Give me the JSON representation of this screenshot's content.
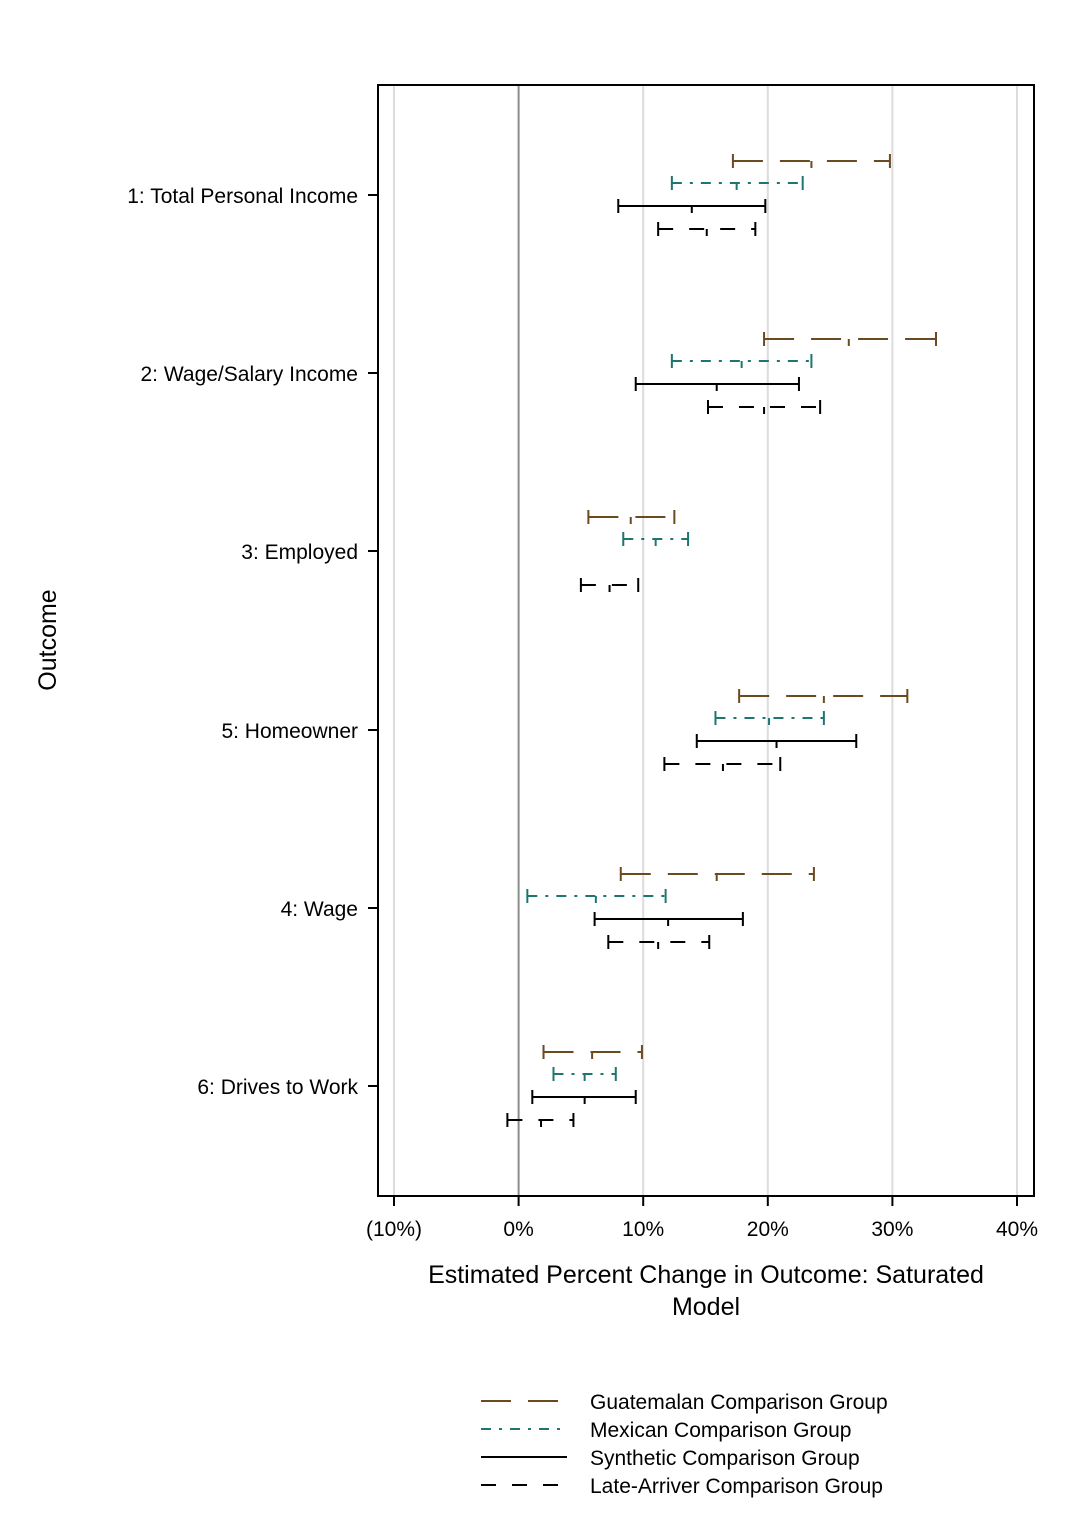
{
  "chart_data": {
    "type": "interval",
    "title": "",
    "xlabel": "Estimated Percent Change in Outcome: Saturated Model",
    "ylabel": "Outcome",
    "xlim": [
      -11,
      41
    ],
    "x_ticks": [
      {
        "value": -10,
        "label": "(10%)"
      },
      {
        "value": 0,
        "label": "0%"
      },
      {
        "value": 10,
        "label": "10%"
      },
      {
        "value": 20,
        "label": "20%"
      },
      {
        "value": 30,
        "label": "30%"
      },
      {
        "value": 40,
        "label": "40%"
      }
    ],
    "grid": true,
    "reference_line": 0,
    "legend_position": "bottom",
    "categories": [
      "1: Total Personal Income",
      "2: Wage/Salary Income",
      "3: Employed",
      "5: Homeowner",
      "4: Wage",
      "6: Drives to Work"
    ],
    "series": [
      {
        "name": "Guatemalan Comparison Group",
        "color": "#6b4a1f",
        "dash": "long-dash",
        "intervals": [
          {
            "low": 17.2,
            "point": 23.5,
            "high": 29.8
          },
          {
            "low": 19.7,
            "point": 26.5,
            "high": 33.5
          },
          {
            "low": 5.6,
            "point": 9.0,
            "high": 12.5
          },
          {
            "low": 17.7,
            "point": 24.5,
            "high": 31.2
          },
          {
            "low": 8.2,
            "point": 15.9,
            "high": 23.7
          },
          {
            "low": 2.0,
            "point": 5.9,
            "high": 9.9
          }
        ]
      },
      {
        "name": "Mexican Comparison Group",
        "color": "#1f7570",
        "dash": "dash-dot",
        "intervals": [
          {
            "low": 12.3,
            "point": 17.5,
            "high": 22.8
          },
          {
            "low": 12.3,
            "point": 17.9,
            "high": 23.5
          },
          {
            "low": 8.4,
            "point": 11.0,
            "high": 13.6
          },
          {
            "low": 15.8,
            "point": 20.1,
            "high": 24.5
          },
          {
            "low": 0.7,
            "point": 6.2,
            "high": 11.8
          },
          {
            "low": 2.8,
            "point": 5.3,
            "high": 7.8
          }
        ]
      },
      {
        "name": "Synthetic Comparison Group",
        "color": "#000000",
        "dash": "solid",
        "intervals": [
          {
            "low": 8.0,
            "point": 13.9,
            "high": 19.8
          },
          {
            "low": 9.4,
            "point": 15.9,
            "high": 22.5
          },
          null,
          {
            "low": 14.3,
            "point": 20.7,
            "high": 27.1
          },
          {
            "low": 6.1,
            "point": 12.0,
            "high": 18.0
          },
          {
            "low": 1.1,
            "point": 5.3,
            "high": 9.4
          }
        ]
      },
      {
        "name": "Late-Arriver Comparison Group",
        "color": "#000000",
        "dash": "short-dash",
        "intervals": [
          {
            "low": 11.2,
            "point": 15.1,
            "high": 19.0
          },
          {
            "low": 15.2,
            "point": 19.7,
            "high": 24.2
          },
          {
            "low": 5.0,
            "point": 7.3,
            "high": 9.6
          },
          {
            "low": 11.7,
            "point": 16.4,
            "high": 21.0
          },
          {
            "low": 7.2,
            "point": 11.2,
            "high": 15.3
          },
          {
            "low": -0.9,
            "point": 1.8,
            "high": 4.4
          }
        ]
      }
    ]
  }
}
